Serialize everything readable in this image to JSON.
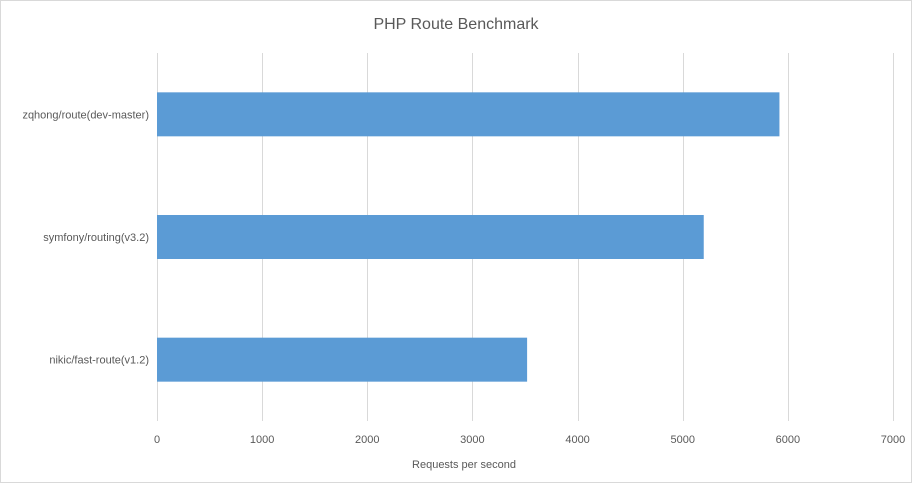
{
  "chart_data": {
    "type": "bar",
    "orientation": "horizontal",
    "title": "PHP Route Benchmark",
    "xlabel": "Requests per second",
    "ylabel": "",
    "categories": [
      "zqhong/route(dev-master)",
      "symfony/routing(v3.2)",
      "nikic/fast-route(v1.2)"
    ],
    "values": [
      5920,
      5200,
      3520
    ],
    "xlim": [
      0,
      7000
    ],
    "xticks": [
      0,
      1000,
      2000,
      3000,
      4000,
      5000,
      6000,
      7000
    ],
    "grid": "vertical",
    "legend": "none",
    "bar_color": "#5b9bd5"
  }
}
